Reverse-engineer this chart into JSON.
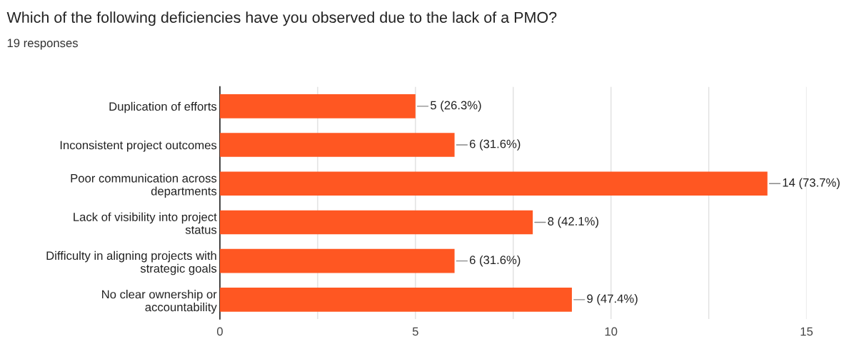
{
  "chart_data": {
    "type": "bar",
    "orientation": "horizontal",
    "title": "Which of the following deficiencies have you observed due to the lack of a PMO?",
    "subtitle": "19 responses",
    "categories": [
      "Duplication of efforts",
      "Inconsistent project outcomes",
      "Poor communication across\ndepartments",
      "Lack of visibility into project\nstatus",
      "Difficulty in aligning projects with\nstrategic goals",
      "No clear ownership or\naccountability"
    ],
    "values": [
      5,
      6,
      14,
      8,
      6,
      9
    ],
    "value_labels": [
      "5 (26.3%)",
      "6 (31.6%)",
      "14 (73.7%)",
      "8 (42.1%)",
      "6 (31.6%)",
      "9 (47.4%)"
    ],
    "color": "#ff5722",
    "xlim": [
      0,
      15
    ],
    "xticks": [
      0,
      {
        "value": 2.5,
        "label": null
      },
      5,
      {
        "value": 7.5,
        "label": null
      },
      10,
      {
        "value": 12.5,
        "label": null
      },
      15
    ],
    "grid": "x",
    "legend": false
  }
}
